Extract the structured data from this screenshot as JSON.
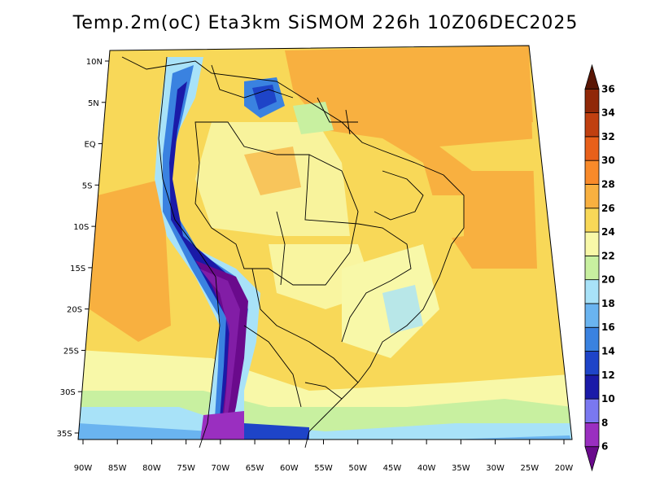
{
  "title": "Temp.2m(oC) Eta3km SiSMOM 226h 10Z06DEC2025",
  "lon_ticks": [
    "90W",
    "85W",
    "80W",
    "75W",
    "70W",
    "65W",
    "60W",
    "55W",
    "50W",
    "45W",
    "40W",
    "35W",
    "30W",
    "25W",
    "20W"
  ],
  "lat_ticks": [
    "10N",
    "5N",
    "EQ",
    "5S",
    "10S",
    "15S",
    "20S",
    "25S",
    "30S",
    "35S"
  ],
  "colorbar": {
    "levels": [
      "6",
      "8",
      "10",
      "12",
      "14",
      "16",
      "18",
      "20",
      "22",
      "24",
      "26",
      "28",
      "30",
      "32",
      "34",
      "36"
    ],
    "colors": [
      "#6a0a8c",
      "#9a2fc0",
      "#7a78f0",
      "#1a1aa8",
      "#1e44c8",
      "#3a82e0",
      "#6ab4f0",
      "#a8e2f8",
      "#c8f0a0",
      "#f8f8a8",
      "#f8d858",
      "#f8b040",
      "#f88a2a",
      "#e8601a",
      "#c04010",
      "#902808",
      "#5a1604"
    ]
  }
}
